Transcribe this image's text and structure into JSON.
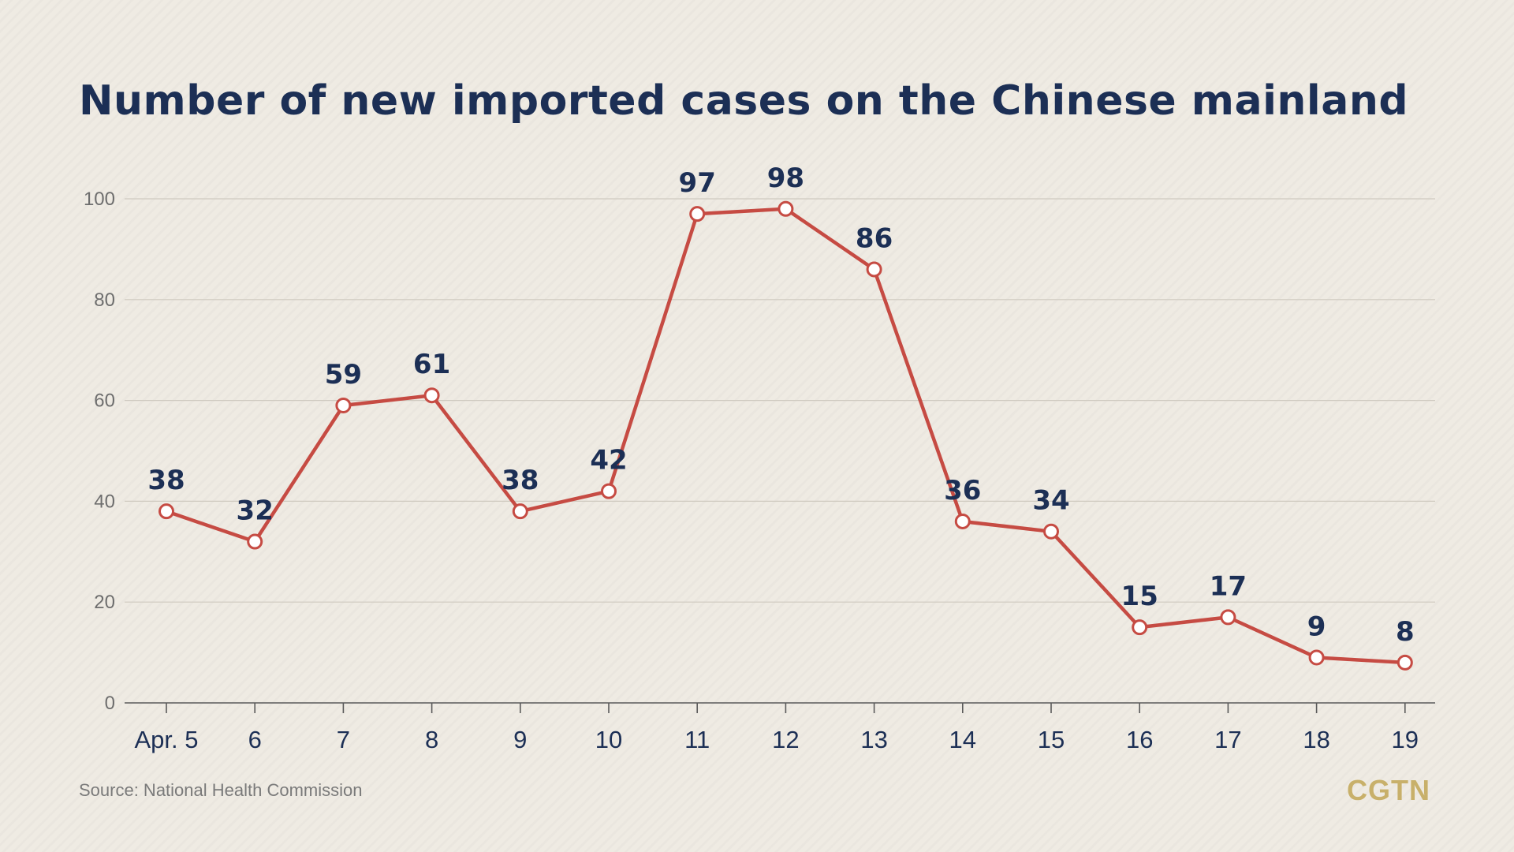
{
  "chart_data": {
    "type": "line",
    "title": "Number of new imported cases on the Chinese mainland",
    "categories": [
      "Apr. 5",
      "6",
      "7",
      "8",
      "9",
      "10",
      "11",
      "12",
      "13",
      "14",
      "15",
      "16",
      "17",
      "18",
      "19"
    ],
    "series": [
      {
        "values": [
          38,
          32,
          59,
          61,
          38,
          42,
          97,
          98,
          86,
          36,
          34,
          15,
          17,
          9,
          8
        ]
      }
    ],
    "ylim": [
      0,
      100
    ],
    "yticks": [
      0,
      20,
      40,
      60,
      80,
      100
    ],
    "xlabel": "",
    "ylabel": "",
    "grid": true,
    "data_labels": true
  },
  "source": "Source: National Health Commission",
  "logo": "CGTN",
  "colors": {
    "line": "#c64b43",
    "title": "#1c2f55",
    "data_label": "#1c2f55",
    "axis_text": "#6e6e6e",
    "x_label": "#1c2f55",
    "logo": "#c8b06a",
    "background": "#efebe3"
  }
}
